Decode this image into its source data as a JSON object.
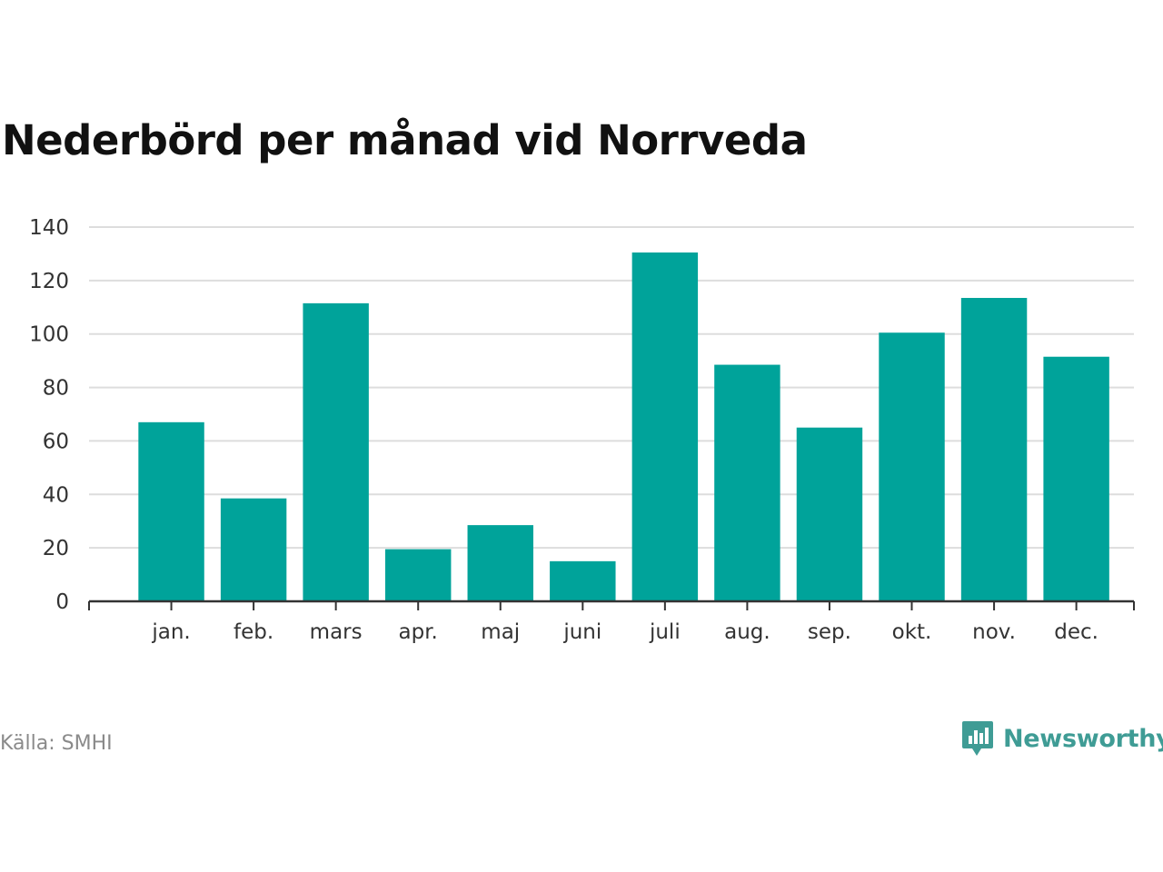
{
  "title": "Nederbörd per månad vid Norrveda",
  "source": "Källa: SMHI",
  "brand": {
    "name": "Newsworthy",
    "icon": "bar-chart-speech-bubble-icon"
  },
  "colors": {
    "bar": "#00a39a",
    "grid": "#dddddd",
    "axis": "#333333",
    "brand": "#3f9c95"
  },
  "chart_data": {
    "type": "bar",
    "title": "Nederbörd per månad vid Norrveda",
    "xlabel": "",
    "ylabel": "",
    "categories": [
      "jan.",
      "feb.",
      "mars",
      "apr.",
      "maj",
      "juni",
      "juli",
      "aug.",
      "sep.",
      "okt.",
      "nov.",
      "dec."
    ],
    "values": [
      67,
      38.5,
      111.5,
      19.5,
      28.5,
      15,
      130.5,
      88.5,
      65,
      100.5,
      113.5,
      91.5
    ],
    "ylim": [
      0,
      140
    ],
    "yticks": [
      "0",
      "20",
      "40",
      "60",
      "80",
      "100",
      "120",
      "140"
    ],
    "grid": true,
    "legend": "none"
  }
}
